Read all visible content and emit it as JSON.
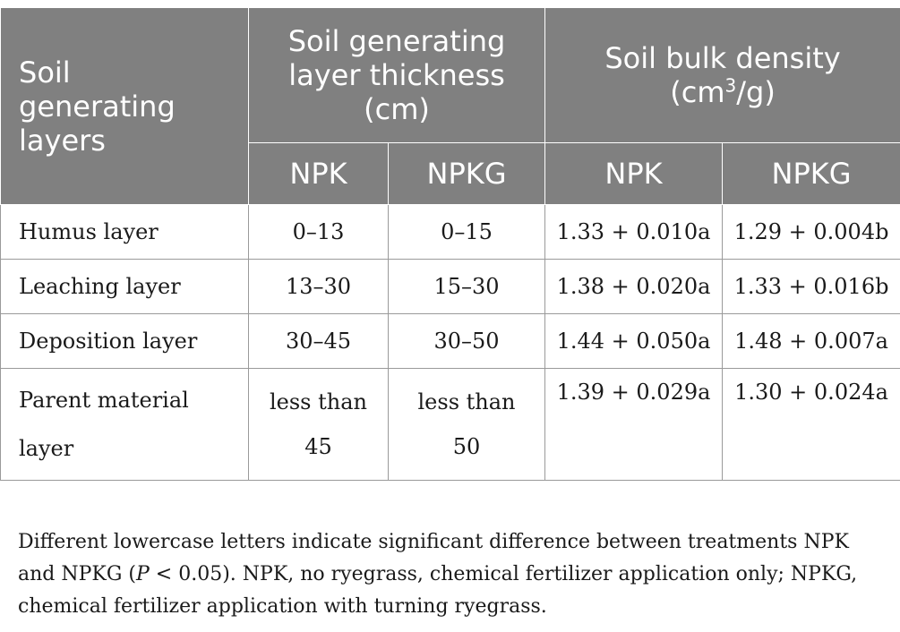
{
  "table": {
    "header": {
      "corner_lines": [
        "Soil",
        "generating",
        "layers"
      ],
      "thickness_lines": [
        "Soil generating",
        "layer thickness",
        "(cm)"
      ],
      "density_line1": "Soil bulk density",
      "density_unit_prefix": "(cm",
      "density_unit_sup": "3",
      "density_unit_suffix": "/g)",
      "sub_npk_1": "NPK",
      "sub_npkg_1": "NPKG",
      "sub_npk_2": "NPK",
      "sub_npkg_2": "NPKG"
    },
    "rows": [
      {
        "layer": "Humus layer",
        "thickness_npk": "0–13",
        "thickness_npkg": "0–15",
        "density_npk": "1.33 + 0.010a",
        "density_npkg": "1.29 + 0.004b"
      },
      {
        "layer": "Leaching layer",
        "thickness_npk": "13–30",
        "thickness_npkg": "15–30",
        "density_npk": "1.38 + 0.020a",
        "density_npkg": "1.33 + 0.016b"
      },
      {
        "layer": "Deposition layer",
        "thickness_npk": "30–45",
        "thickness_npkg": "30–50",
        "density_npk": "1.44 + 0.050a",
        "density_npkg": "1.48 + 0.007a"
      }
    ],
    "last_row": {
      "layer_lines": [
        "Parent material",
        "layer"
      ],
      "thickness_npk_lines": [
        "less than",
        "45"
      ],
      "thickness_npkg_lines": [
        "less than",
        "50"
      ],
      "density_npk": "1.39 + 0.029a",
      "density_npkg": "1.30 + 0.024a"
    }
  },
  "footnote": {
    "part1": "Different lowercase letters indicate significant difference between treatments NPK and NPKG (",
    "p_symbol": "P",
    "part2": " < 0.05). NPK, no ryegrass, chemical fertilizer application only; NPKG, chemical fertilizer application with turning ryegrass."
  }
}
